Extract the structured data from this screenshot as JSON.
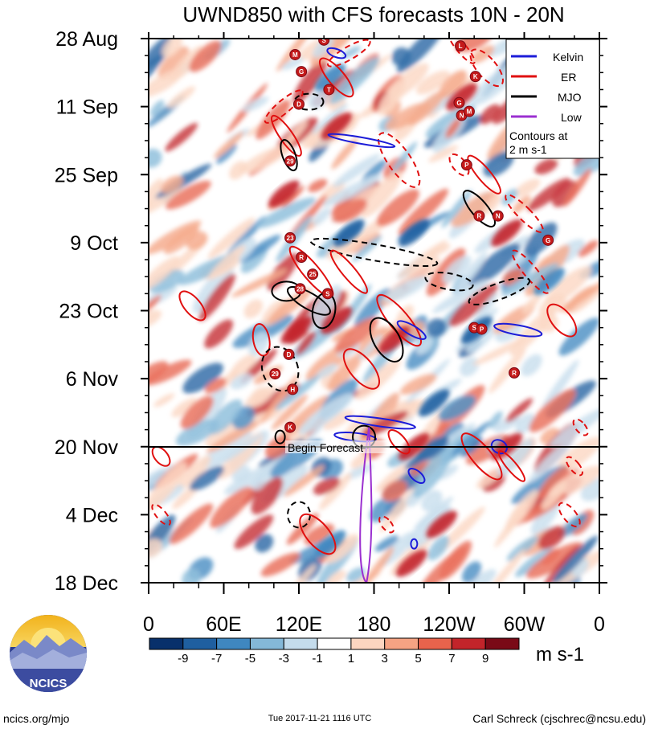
{
  "chart_data": {
    "type": "heatmap",
    "title": "UWND850 with CFS forecasts  10N - 20N",
    "y_axis": {
      "ticks": [
        "28 Aug",
        "11 Sep",
        "25 Sep",
        "9 Oct",
        "23 Oct",
        "6 Nov",
        "20 Nov",
        "4 Dec",
        "18 Dec"
      ],
      "range": [
        "28 Aug",
        "18 Dec"
      ],
      "direction": "time increases downward"
    },
    "x_axis": {
      "ticks": [
        "0",
        "60E",
        "120E",
        "180",
        "120W",
        "60W",
        "0"
      ],
      "range_deg_east": [
        0,
        360
      ]
    },
    "legend": {
      "items": [
        {
          "label": "Kelvin",
          "color": "#1c1cd8"
        },
        {
          "label": "ER",
          "color": "#e01010"
        },
        {
          "label": "MJO",
          "color": "#000000"
        },
        {
          "label": "Low",
          "color": "#9b30d0"
        }
      ],
      "note_line1": "Contours at",
      "note_line2": "2 m s-1",
      "placement": "top-right"
    },
    "colorbar": {
      "labels": [
        "-9",
        "-7",
        "-5",
        "-3",
        "-1",
        "1",
        "3",
        "5",
        "7",
        "9"
      ],
      "colors": [
        "#08306b",
        "#1f5fa0",
        "#3f87c0",
        "#84b8d8",
        "#c4dcec",
        "#ffffff",
        "#fcd5c0",
        "#f5a383",
        "#e8634c",
        "#c2242a",
        "#7a0a17"
      ],
      "units": "m s-1"
    },
    "forecast_line": {
      "date": "20 Nov",
      "label": "Begin Forecast"
    },
    "storm_markers": [
      {
        "letter": "S",
        "lon": 140,
        "day": 0.3
      },
      {
        "letter": "M",
        "lon": 117,
        "day": 3.3
      },
      {
        "letter": "G",
        "lon": 122,
        "day": 6.8
      },
      {
        "letter": "T",
        "lon": 144,
        "day": 10.5
      },
      {
        "letter": "D",
        "lon": 120,
        "day": 13.5
      },
      {
        "letter": "L",
        "lon": 249,
        "day": 1.5
      },
      {
        "letter": "K",
        "lon": 261,
        "day": 7.8
      },
      {
        "letter": "G",
        "lon": 248,
        "day": 13.2
      },
      {
        "letter": "N",
        "lon": 250,
        "day": 15.8
      },
      {
        "letter": "M",
        "lon": 256,
        "day": 15.0
      },
      {
        "letter": "29",
        "lon": 113,
        "day": 25.2
      },
      {
        "letter": "P",
        "lon": 254,
        "day": 26.0
      },
      {
        "letter": "R",
        "lon": 264,
        "day": 36.5
      },
      {
        "letter": "N",
        "lon": 279,
        "day": 36.5
      },
      {
        "letter": "23",
        "lon": 113,
        "day": 41.0
      },
      {
        "letter": "G",
        "lon": 319,
        "day": 41.5
      },
      {
        "letter": "R",
        "lon": 122,
        "day": 45.0
      },
      {
        "letter": "25",
        "lon": 131,
        "day": 48.5
      },
      {
        "letter": "28",
        "lon": 121,
        "day": 51.5
      },
      {
        "letter": "S",
        "lon": 143,
        "day": 52.5
      },
      {
        "letter": "S",
        "lon": 260,
        "day": 59.5
      },
      {
        "letter": "P",
        "lon": 266,
        "day": 59.8
      },
      {
        "letter": "D",
        "lon": 112,
        "day": 65.0
      },
      {
        "letter": "29",
        "lon": 101,
        "day": 69.0
      },
      {
        "letter": "R",
        "lon": 292,
        "day": 68.8
      },
      {
        "letter": "H",
        "lon": 115,
        "day": 72.2
      },
      {
        "letter": "K",
        "lon": 113,
        "day": 80.0
      }
    ]
  },
  "footer": {
    "left": "ncics.org/mjo",
    "center": "Tue 2017-11-21 1116 UTC",
    "right": "Carl Schreck (cjschrec@ncsu.edu)",
    "logo_text": "NCICS"
  }
}
